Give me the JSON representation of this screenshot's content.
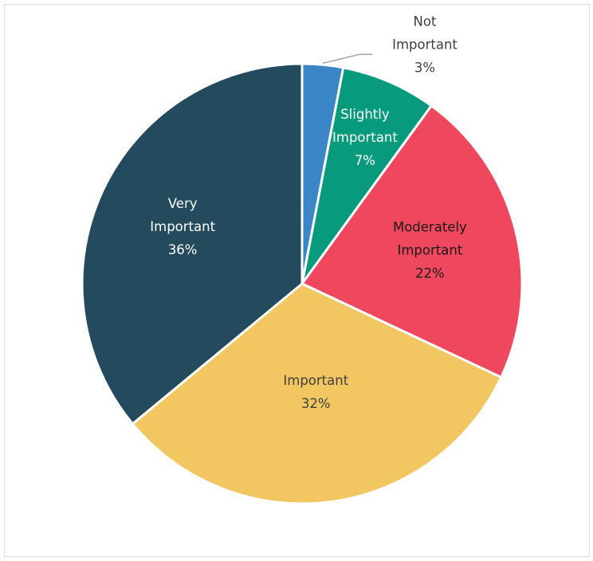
{
  "chart_data": {
    "type": "pie",
    "title": "",
    "slices": [
      {
        "name": "Not Important",
        "label_lines": [
          "Not",
          "Important"
        ],
        "pct_label": "3%",
        "value": 3,
        "color": "#3b86c7",
        "label_color": "#404040"
      },
      {
        "name": "Slightly Important",
        "label_lines": [
          "Slightly",
          "Important"
        ],
        "pct_label": "7%",
        "value": 7,
        "color": "#079a7c",
        "label_color": "#ffffff"
      },
      {
        "name": "Moderately Important",
        "label_lines": [
          "Moderately",
          "Important"
        ],
        "pct_label": "22%",
        "value": 22,
        "color": "#ef475d",
        "label_color": "#1a1a1a"
      },
      {
        "name": "Important",
        "label_lines": [
          "Important"
        ],
        "pct_label": "32%",
        "value": 32,
        "color": "#f2c661",
        "label_color": "#404040"
      },
      {
        "name": "Very Important",
        "label_lines": [
          "Very",
          "Important"
        ],
        "pct_label": "36%",
        "value": 36,
        "color": "#244a5e",
        "label_color": "#ffffff"
      }
    ],
    "start_angle": "12 o'clock",
    "direction": "clockwise",
    "legend": "none",
    "border_color": "#d9d9d9"
  }
}
